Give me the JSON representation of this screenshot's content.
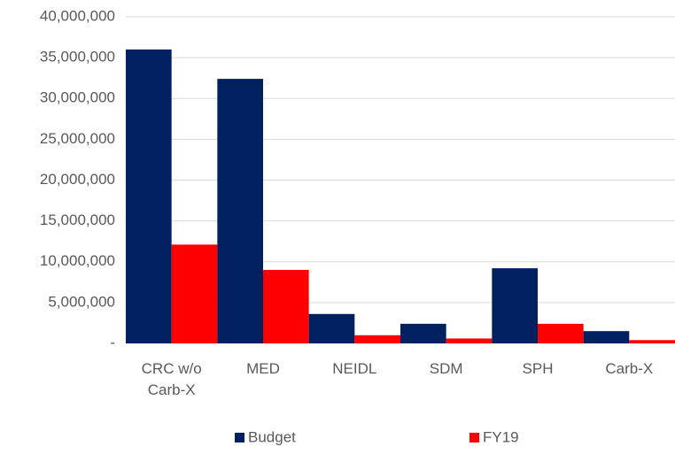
{
  "chart_data": {
    "type": "bar",
    "categories": [
      "CRC w/o Carb-X",
      "MED",
      "NEIDL",
      "SDM",
      "SPH",
      "Carb-X"
    ],
    "series": [
      {
        "name": "Budget",
        "color": "#002060",
        "values": [
          36000000,
          32400000,
          3600000,
          2400000,
          9200000,
          1500000
        ]
      },
      {
        "name": "FY19",
        "color": "#ff0000",
        "values": [
          12100000,
          9000000,
          1000000,
          600000,
          2400000,
          400000
        ]
      }
    ],
    "ylim": [
      0,
      40000000
    ],
    "yticks": [
      {
        "value": 0,
        "label": "-"
      },
      {
        "value": 5000000,
        "label": "5,000,000"
      },
      {
        "value": 10000000,
        "label": "10,000,000"
      },
      {
        "value": 15000000,
        "label": "15,000,000"
      },
      {
        "value": 20000000,
        "label": "20,000,000"
      },
      {
        "value": 25000000,
        "label": "25,000,000"
      },
      {
        "value": 30000000,
        "label": "30,000,000"
      },
      {
        "value": 35000000,
        "label": "35,000,000"
      },
      {
        "value": 40000000,
        "label": "40,000,000"
      }
    ],
    "grid": true,
    "legend": "bottom"
  }
}
